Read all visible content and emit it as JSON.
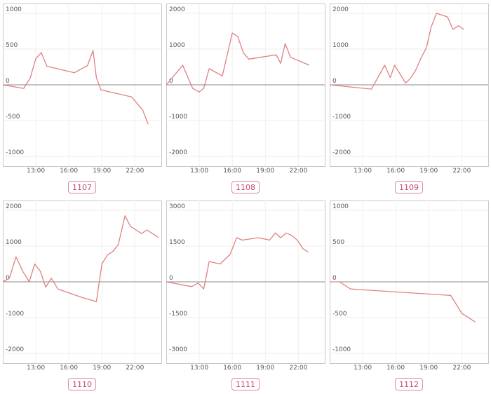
{
  "chart_data": [
    {
      "type": "line",
      "label": "1107",
      "yticks": [
        1000,
        500,
        0,
        -500,
        -1000
      ],
      "ylim": [
        -1000,
        1000
      ],
      "xticks": [
        "13:00",
        "16:00",
        "19:00",
        "22:00"
      ],
      "xtick_hours": [
        13,
        16,
        19,
        22
      ],
      "xlim": [
        10,
        24.4
      ],
      "grid": true,
      "color": "#e08080",
      "x": [
        10,
        11.9,
        12.5,
        13.0,
        13.5,
        14.0,
        16.5,
        17.7,
        18.2,
        18.5,
        18.9,
        21.7,
        22.7,
        23.2
      ],
      "y": [
        0,
        -50,
        100,
        370,
        450,
        260,
        170,
        270,
        480,
        100,
        -70,
        -170,
        -350,
        -550
      ]
    },
    {
      "type": "line",
      "label": "1108",
      "yticks": [
        2000,
        1000,
        0,
        -1000,
        -2000
      ],
      "ylim": [
        -2000,
        2000
      ],
      "xticks": [
        "13:00",
        "16:00",
        "19:00",
        "22:00"
      ],
      "xtick_hours": [
        13,
        16,
        19,
        22
      ],
      "xlim": [
        10,
        24.4
      ],
      "grid": true,
      "color": "#e08080",
      "x": [
        10,
        11.5,
        12.4,
        13.0,
        13.4,
        13.9,
        15.1,
        16.0,
        16.5,
        17.0,
        17.5,
        20.0,
        20.4,
        20.8,
        21.3,
        23.0
      ],
      "y": [
        0,
        550,
        -100,
        -200,
        -100,
        450,
        250,
        1450,
        1350,
        900,
        720,
        840,
        600,
        1150,
        770,
        550
      ]
    },
    {
      "type": "line",
      "label": "1109",
      "yticks": [
        2000,
        1000,
        0,
        -1000,
        -2000
      ],
      "ylim": [
        -2000,
        2000
      ],
      "xticks": [
        "13:00",
        "16:00",
        "19:00",
        "22:00"
      ],
      "xtick_hours": [
        13,
        16,
        19,
        22
      ],
      "xlim": [
        10,
        24.4
      ],
      "grid": true,
      "color": "#e08080",
      "x": [
        10,
        13.8,
        15.0,
        15.5,
        15.9,
        16.9,
        17.3,
        17.8,
        18.3,
        18.8,
        19.2,
        19.7,
        20.7,
        21.2,
        21.7,
        22.2
      ],
      "y": [
        0,
        -120,
        550,
        200,
        550,
        50,
        170,
        400,
        750,
        1050,
        1600,
        2000,
        1900,
        1550,
        1650,
        1550
      ]
    },
    {
      "type": "line",
      "label": "1110",
      "yticks": [
        2000,
        1000,
        0,
        -1000,
        -2000
      ],
      "ylim": [
        -2000,
        2000
      ],
      "xticks": [
        "13:00",
        "16:00",
        "19:00",
        "22:00"
      ],
      "xtick_hours": [
        13,
        16,
        19,
        22
      ],
      "xlim": [
        10,
        24.4
      ],
      "grid": true,
      "color": "#e08080",
      "x": [
        10,
        10.6,
        11.2,
        11.8,
        12.4,
        12.9,
        13.4,
        13.9,
        14.4,
        15.0,
        17.3,
        18.5,
        19.0,
        19.5,
        20.0,
        20.5,
        21.1,
        21.6,
        22.1,
        22.6,
        23.1,
        23.6,
        24.1
      ],
      "y": [
        0,
        100,
        700,
        300,
        0,
        500,
        300,
        -150,
        100,
        -200,
        -450,
        -550,
        500,
        750,
        850,
        1050,
        1850,
        1550,
        1450,
        1350,
        1450,
        1350,
        1250
      ]
    },
    {
      "type": "line",
      "label": "1111",
      "yticks": [
        3000,
        1500,
        0,
        -1500,
        -3000
      ],
      "ylim": [
        -3000,
        3000
      ],
      "xticks": [
        "13:00",
        "16:00",
        "19:00",
        "22:00"
      ],
      "xtick_hours": [
        13,
        16,
        19,
        22
      ],
      "xlim": [
        10,
        24.4
      ],
      "grid": true,
      "color": "#e08080",
      "x": [
        10,
        12.3,
        12.9,
        13.4,
        13.9,
        14.9,
        15.8,
        16.4,
        16.9,
        18.4,
        19.4,
        19.9,
        20.4,
        20.9,
        21.4,
        21.9,
        22.4,
        22.9
      ],
      "y": [
        0,
        -200,
        -50,
        -300,
        850,
        750,
        1150,
        1850,
        1750,
        1850,
        1750,
        2050,
        1850,
        2050,
        1950,
        1750,
        1400,
        1250
      ]
    },
    {
      "type": "line",
      "label": "1112",
      "yticks": [
        1000,
        500,
        0,
        -500,
        -1000
      ],
      "ylim": [
        -1000,
        1000
      ],
      "xticks": [
        "13:00",
        "16:00",
        "19:00",
        "22:00"
      ],
      "xtick_hours": [
        13,
        16,
        19,
        22
      ],
      "xlim": [
        10,
        24.4
      ],
      "grid": true,
      "color": "#e08080",
      "x": [
        10,
        10.9,
        11.9,
        21.0,
        22.0,
        23.2
      ],
      "y": [
        0,
        0,
        -100,
        -190,
        -440,
        -560
      ]
    }
  ]
}
